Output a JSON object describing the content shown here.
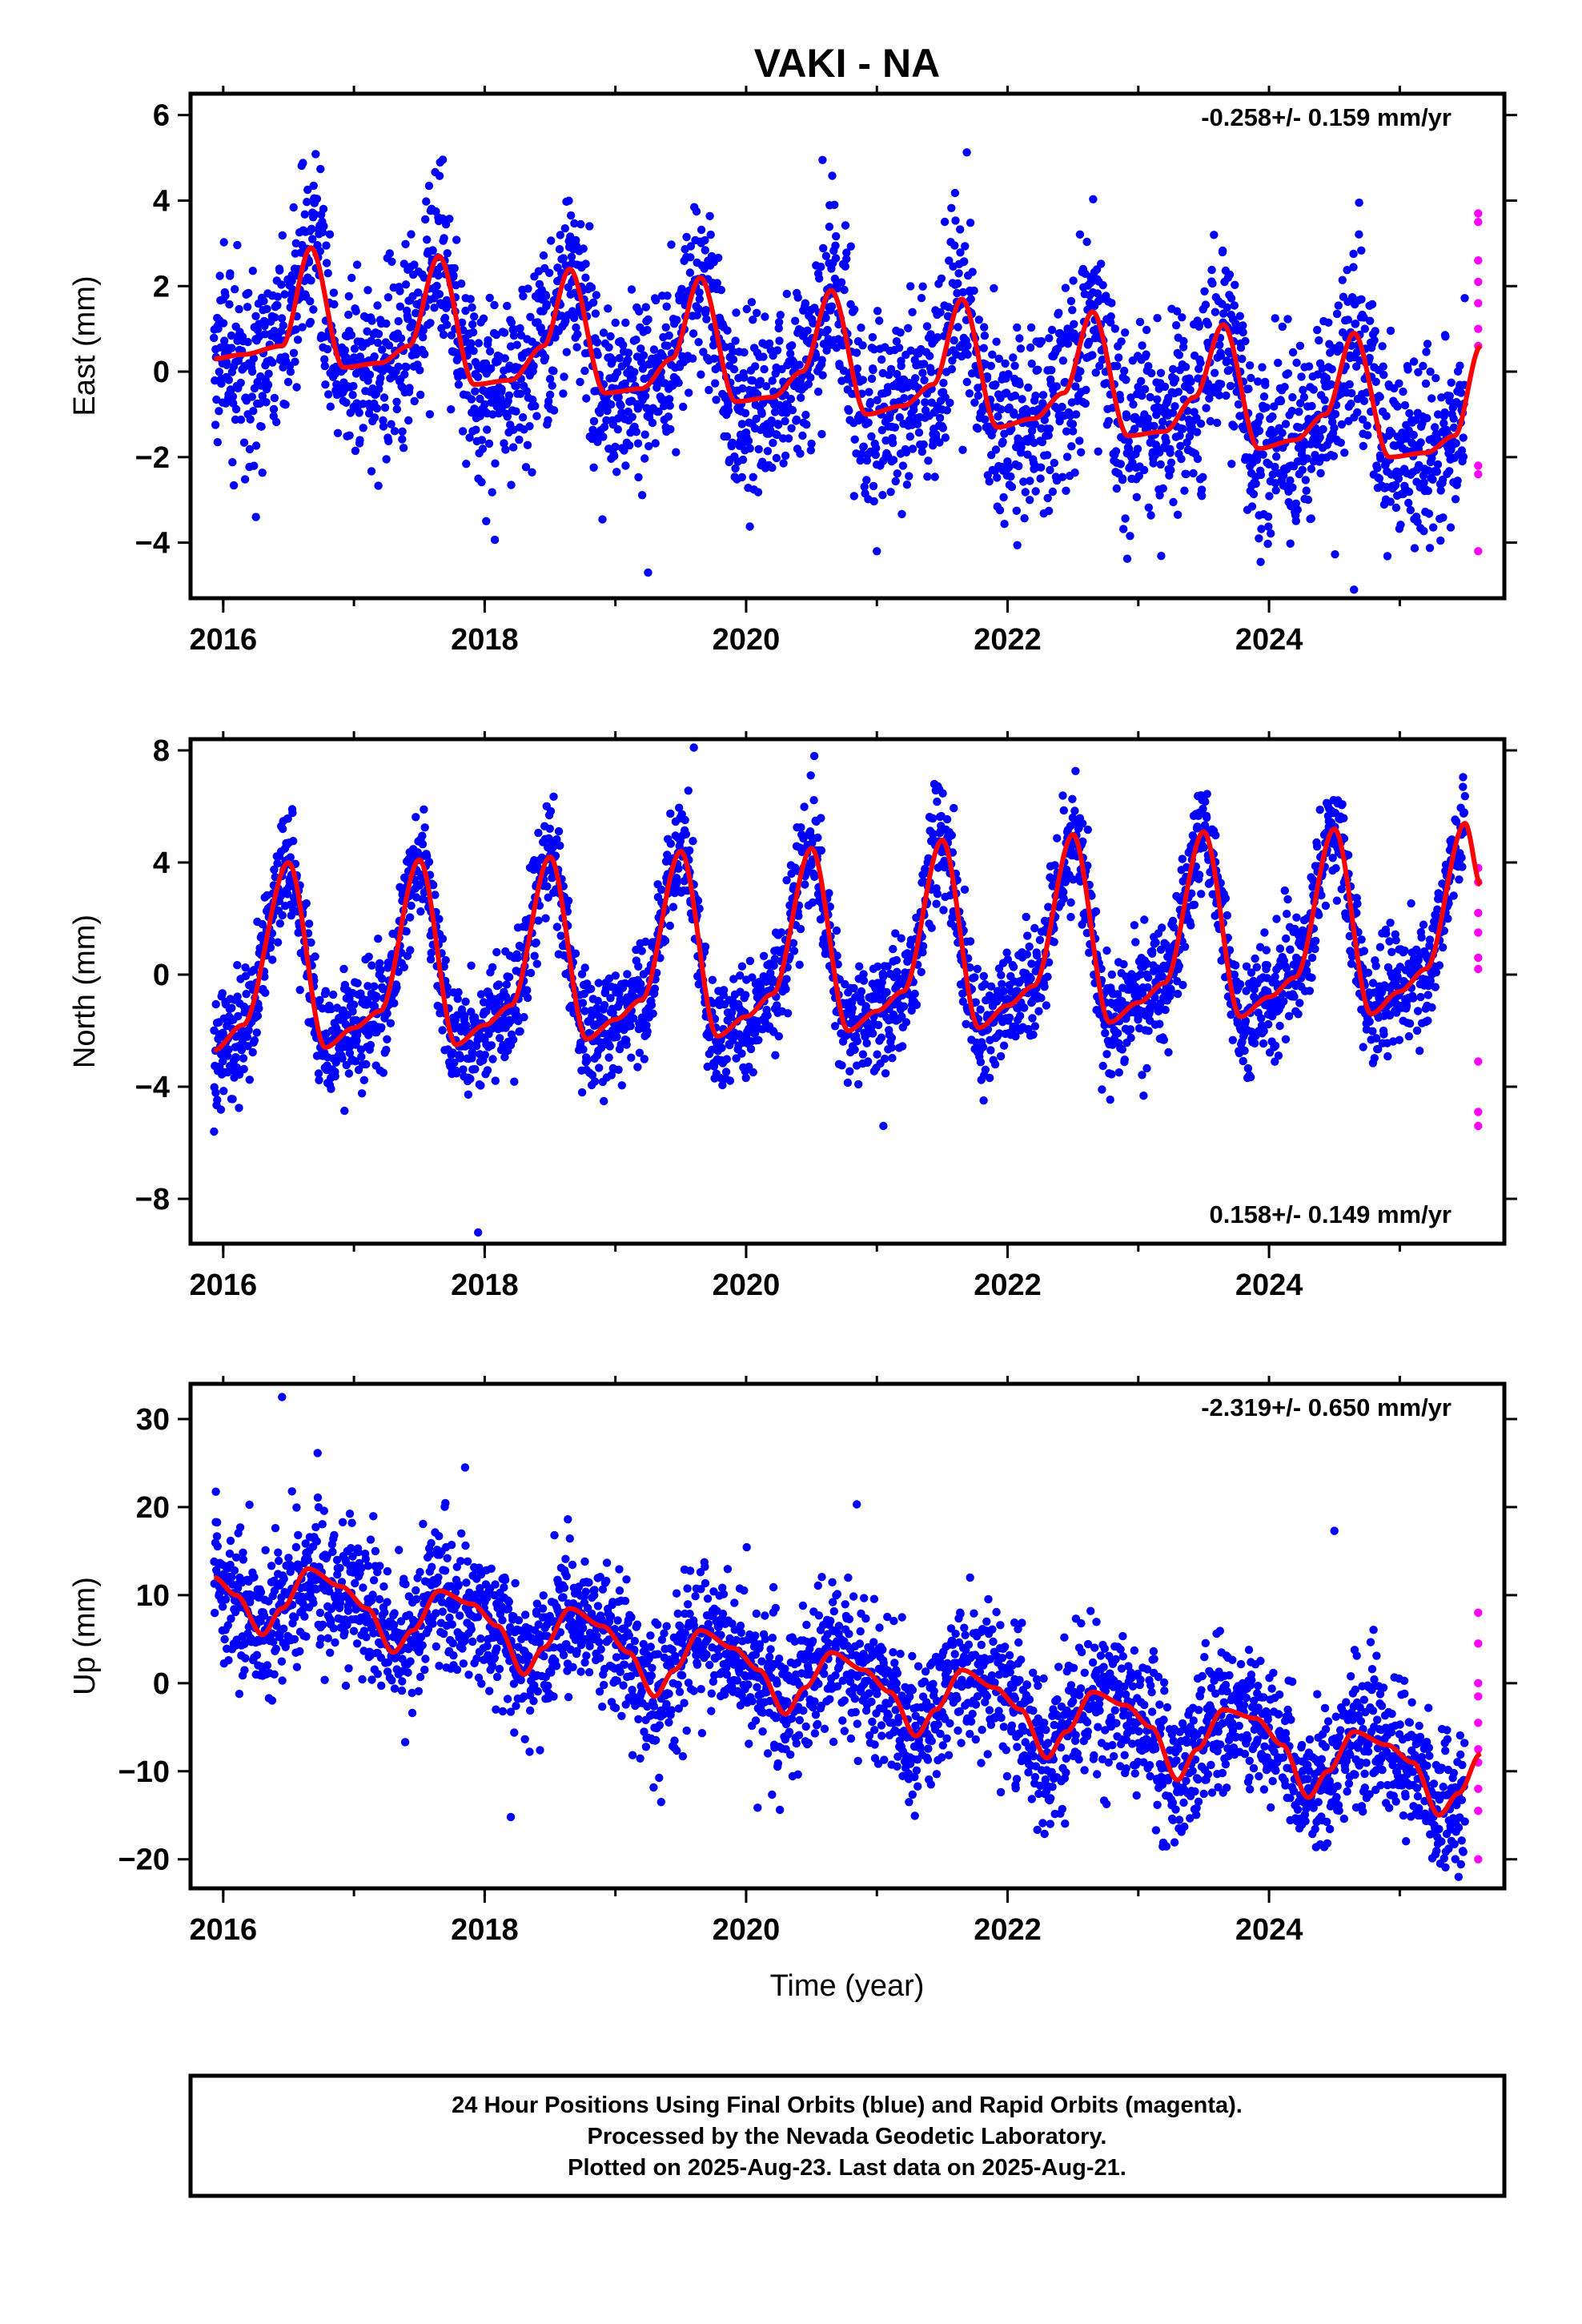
{
  "title": "VAKI - NA",
  "x_label": "Time (year)",
  "colors": {
    "final": "#0000ff",
    "rapid": "#ff00ff",
    "model": "#ff0000",
    "frame": "#000000"
  },
  "footer": {
    "line1": "24 Hour Positions Using Final Orbits (blue) and Rapid Orbits (magenta).",
    "line2": "Processed by the Nevada Geodetic Laboratory.",
    "line3": "Plotted on 2025-Aug-23. Last data on 2025-Aug-21."
  },
  "chart_data": [
    {
      "type": "scatter",
      "component": "east",
      "ylabel": "East (mm)",
      "rate_label": "-0.258+/- 0.159 mm/yr",
      "rate_position": "top-right",
      "xlim": [
        2015.75,
        2025.8
      ],
      "ylim": [
        -5.3,
        6.5
      ],
      "x_ticks": [
        2016,
        2018,
        2020,
        2022,
        2024
      ],
      "x_tick_labels": [
        "2016",
        "2018",
        "2020",
        "2022",
        "2024"
      ],
      "y_ticks": [
        -4,
        -2,
        0,
        2,
        4,
        6
      ],
      "y_tick_labels": [
        "−4",
        "−2",
        "0",
        "2",
        "4",
        "6"
      ],
      "grid": false,
      "model": {
        "name": "model",
        "x": [
          2015.93,
          2016.15,
          2016.45,
          2016.67,
          2016.92,
          2017.2,
          2017.42,
          2017.65,
          2017.92,
          2018.2,
          2018.45,
          2018.65,
          2018.92,
          2019.2,
          2019.43,
          2019.65,
          2019.92,
          2020.2,
          2020.43,
          2020.65,
          2020.92,
          2021.2,
          2021.43,
          2021.65,
          2021.92,
          2022.2,
          2022.43,
          2022.65,
          2022.92,
          2023.2,
          2023.43,
          2023.65,
          2023.92,
          2024.2,
          2024.43,
          2024.65,
          2024.92,
          2025.2,
          2025.42,
          2025.62
        ],
        "y": [
          0.3,
          0.4,
          0.6,
          2.9,
          0.1,
          0.2,
          0.6,
          2.7,
          -0.3,
          -0.2,
          0.6,
          2.4,
          -0.5,
          -0.4,
          0.3,
          2.2,
          -0.7,
          -0.6,
          0.0,
          1.9,
          -1.0,
          -0.8,
          -0.3,
          1.7,
          -1.3,
          -1.1,
          -0.5,
          1.4,
          -1.5,
          -1.4,
          -0.6,
          1.1,
          -1.8,
          -1.6,
          -1.0,
          0.9,
          -2.0,
          -1.9,
          -1.5,
          0.6
        ]
      },
      "final_series": {
        "name": "Final Orbits",
        "y_scatter_sd": 1.1,
        "x_range": [
          2015.93,
          2025.5
        ]
      },
      "rapid_points": {
        "name": "Rapid Orbits",
        "x": [
          2025.6,
          2025.6,
          2025.6,
          2025.6,
          2025.6,
          2025.6,
          2025.6,
          2025.6,
          2025.6,
          2025.6
        ],
        "y": [
          3.7,
          3.5,
          2.6,
          2.1,
          1.6,
          1.0,
          0.6,
          -2.2,
          -2.4,
          -4.2
        ]
      },
      "outliers": {
        "x": [
          2016.25,
          2019.25,
          2021.0,
          2024.65
        ],
        "y": [
          -3.4,
          -4.7,
          -4.2,
          -5.1
        ]
      }
    },
    {
      "type": "scatter",
      "component": "north",
      "ylabel": "North (mm)",
      "rate_label": "0.158+/- 0.149 mm/yr",
      "rate_position": "bottom-right",
      "xlim": [
        2015.75,
        2025.8
      ],
      "ylim": [
        -9.6,
        8.4
      ],
      "x_ticks": [
        2016,
        2018,
        2020,
        2022,
        2024
      ],
      "x_tick_labels": [
        "2016",
        "2018",
        "2020",
        "2022",
        "2024"
      ],
      "y_ticks": [
        -8,
        -4,
        0,
        4,
        8
      ],
      "y_tick_labels": [
        "−8",
        "−4",
        "0",
        "4",
        "8"
      ],
      "grid": false,
      "model": {
        "name": "model",
        "x": [
          2015.93,
          2016.15,
          2016.5,
          2016.78,
          2017.0,
          2017.2,
          2017.5,
          2017.78,
          2018.0,
          2018.2,
          2018.5,
          2018.78,
          2019.0,
          2019.2,
          2019.5,
          2019.78,
          2020.0,
          2020.2,
          2020.5,
          2020.78,
          2021.0,
          2021.2,
          2021.5,
          2021.78,
          2022.0,
          2022.2,
          2022.5,
          2022.78,
          2023.0,
          2023.2,
          2023.5,
          2023.78,
          2024.0,
          2024.2,
          2024.5,
          2024.78,
          2025.0,
          2025.2,
          2025.5,
          2025.62
        ],
        "y": [
          -2.7,
          -1.8,
          4.0,
          -2.6,
          -1.9,
          -1.3,
          4.1,
          -2.5,
          -1.8,
          -1.1,
          4.2,
          -2.3,
          -1.6,
          -0.9,
          4.4,
          -2.2,
          -1.5,
          -0.7,
          4.5,
          -2.0,
          -1.3,
          -0.6,
          4.8,
          -1.9,
          -1.1,
          -0.4,
          5.0,
          -1.7,
          -1.0,
          -0.3,
          5.1,
          -1.5,
          -0.8,
          -0.1,
          5.2,
          -1.4,
          -0.6,
          0.2,
          5.4,
          3.2
        ]
      },
      "final_series": {
        "name": "Final Orbits",
        "y_scatter_sd": 1.0,
        "x_range": [
          2015.93,
          2025.5
        ]
      },
      "rapid_points": {
        "name": "Rapid Orbits",
        "x": [
          2025.6,
          2025.6,
          2025.6,
          2025.6,
          2025.6,
          2025.6,
          2025.6,
          2025.6,
          2025.6
        ],
        "y": [
          3.8,
          3.3,
          2.2,
          1.5,
          0.6,
          0.2,
          -3.1,
          -4.9,
          -5.4
        ]
      },
      "outliers": {
        "x": [
          2015.93,
          2017.95,
          2019.6,
          2021.05
        ],
        "y": [
          -5.6,
          -9.2,
          8.1,
          -5.4
        ]
      }
    },
    {
      "type": "scatter",
      "component": "up",
      "ylabel": "Up (mm)",
      "rate_label": "-2.319+/- 0.650 mm/yr",
      "rate_position": "top-right",
      "xlim": [
        2015.75,
        2025.8
      ],
      "ylim": [
        -23.3,
        34.0
      ],
      "x_ticks": [
        2016,
        2018,
        2020,
        2022,
        2024
      ],
      "x_tick_labels": [
        "2016",
        "2018",
        "2020",
        "2022",
        "2024"
      ],
      "y_ticks": [
        -20,
        -10,
        0,
        10,
        20,
        30
      ],
      "y_tick_labels": [
        "−20",
        "−10",
        "0",
        "10",
        "20",
        "30"
      ],
      "grid": false,
      "model": {
        "name": "model",
        "x": [
          2015.93,
          2016.1,
          2016.3,
          2016.45,
          2016.65,
          2016.9,
          2017.1,
          2017.3,
          2017.45,
          2017.65,
          2017.9,
          2018.1,
          2018.3,
          2018.45,
          2018.65,
          2018.9,
          2019.1,
          2019.3,
          2019.45,
          2019.65,
          2019.9,
          2020.1,
          2020.3,
          2020.45,
          2020.65,
          2020.9,
          2021.1,
          2021.3,
          2021.45,
          2021.65,
          2021.9,
          2022.1,
          2022.3,
          2022.45,
          2022.65,
          2022.9,
          2023.1,
          2023.3,
          2023.45,
          2023.65,
          2023.9,
          2024.1,
          2024.3,
          2024.45,
          2024.65,
          2024.9,
          2025.1,
          2025.3,
          2025.45,
          2025.62
        ],
        "y": [
          12.0,
          10.0,
          5.5,
          8.5,
          13.0,
          11.0,
          8.5,
          3.5,
          6.0,
          10.5,
          9.0,
          6.5,
          1.0,
          4.0,
          8.5,
          6.5,
          3.5,
          -1.5,
          1.5,
          6.0,
          4.0,
          1.5,
          -3.5,
          -0.5,
          3.5,
          1.5,
          -1.0,
          -6.0,
          -3.0,
          1.5,
          -0.5,
          -3.0,
          -8.5,
          -5.5,
          -1.0,
          -2.5,
          -5.0,
          -11.0,
          -7.5,
          -3.0,
          -4.0,
          -7.0,
          -13.0,
          -10.0,
          -5.5,
          -7.0,
          -9.0,
          -15.0,
          -12.5,
          -8.0
        ]
      },
      "final_series": {
        "name": "Final Orbits",
        "y_scatter_sd": 4.2,
        "x_range": [
          2015.93,
          2025.5
        ]
      },
      "rapid_points": {
        "name": "Rapid Orbits",
        "x": [
          2025.6,
          2025.6,
          2025.6,
          2025.6,
          2025.6,
          2025.6,
          2025.6,
          2025.6,
          2025.6,
          2025.6
        ],
        "y": [
          8.0,
          4.5,
          0.0,
          -1.5,
          -4.5,
          -7.5,
          -9.0,
          -12.0,
          -14.5,
          -20.0
        ]
      },
      "outliers": {
        "x": [
          2016.45,
          2017.85,
          2018.2,
          2019.35,
          2024.5,
          2025.45
        ],
        "y": [
          32.5,
          24.5,
          -15.2,
          -13.5,
          17.3,
          -22.0
        ]
      }
    }
  ]
}
